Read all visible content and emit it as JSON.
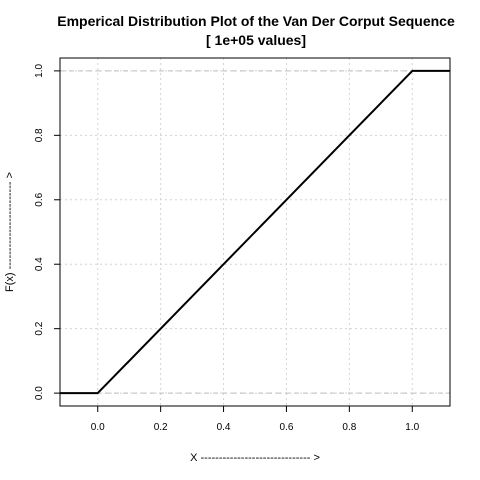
{
  "chart_data": {
    "type": "line",
    "title": "Emperical Distribution Plot of the Van Der Corput Sequence",
    "subtitle": "[ 1e+05 values]",
    "xlabel": "X ------------------------------ >",
    "ylabel": "F(x) ------------------------ >",
    "xlim": [
      -0.12,
      1.12
    ],
    "ylim": [
      -0.04,
      1.04
    ],
    "x_ticks": [
      0.0,
      0.2,
      0.4,
      0.6,
      0.8,
      1.0
    ],
    "x_tick_labels": [
      "0.0",
      "0.2",
      "0.4",
      "0.6",
      "0.8",
      "1.0"
    ],
    "y_ticks": [
      0.0,
      0.2,
      0.4,
      0.6,
      0.8,
      1.0
    ],
    "y_tick_labels": [
      "0.0",
      "0.2",
      "0.4",
      "0.6",
      "0.8",
      "1.0"
    ],
    "grid": true,
    "reference_lines_y": [
      0.0,
      1.0
    ],
    "series": [
      {
        "x": [
          -0.12,
          0.0,
          1.0,
          1.12
        ],
        "y": [
          0.0,
          0.0,
          1.0,
          1.0
        ],
        "color": "#000000"
      }
    ],
    "colors": {
      "grid": "#d3d3d3",
      "reference_line": "#bdbdbd",
      "series": "#000000",
      "axis": "#000000"
    }
  }
}
